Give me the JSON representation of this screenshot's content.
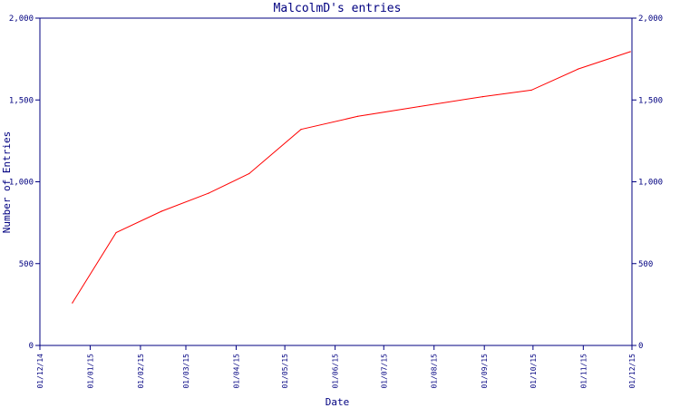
{
  "chart_data": {
    "type": "line",
    "title": "MalcolmD's entries",
    "xlabel": "Date",
    "ylabel": "Number of Entries",
    "x_ticks": [
      "01/12/14",
      "01/01/15",
      "01/02/15",
      "01/03/15",
      "01/04/15",
      "01/05/15",
      "01/06/15",
      "01/07/15",
      "01/08/15",
      "01/09/15",
      "01/10/15",
      "01/11/15",
      "01/12/15"
    ],
    "y_ticks": [
      0,
      500,
      1000,
      1500,
      2000
    ],
    "y_tick_labels": [
      "0",
      "500",
      "1,000",
      "1,500",
      "2,000"
    ],
    "ylim": [
      0,
      2000
    ],
    "xlim": [
      "2014-12-01",
      "2015-12-01"
    ],
    "series": [
      {
        "color": "#ff0000",
        "x": [
          "2014-12-21",
          "2015-01-17",
          "2015-02-14",
          "2015-03-15",
          "2015-04-09",
          "2015-05-11",
          "2015-06-15",
          "2015-07-23",
          "2015-08-31",
          "2015-09-30",
          "2015-10-29",
          "2015-11-30"
        ],
        "y": [
          260,
          690,
          820,
          930,
          1050,
          1320,
          1400,
          1460,
          1520,
          1560,
          1690,
          1795
        ]
      }
    ],
    "colors": {
      "axis": "#000080",
      "text": "#000080",
      "line": "#ff0000",
      "background": "#ffffff"
    },
    "grid": false,
    "right_axis_mirror": true
  }
}
